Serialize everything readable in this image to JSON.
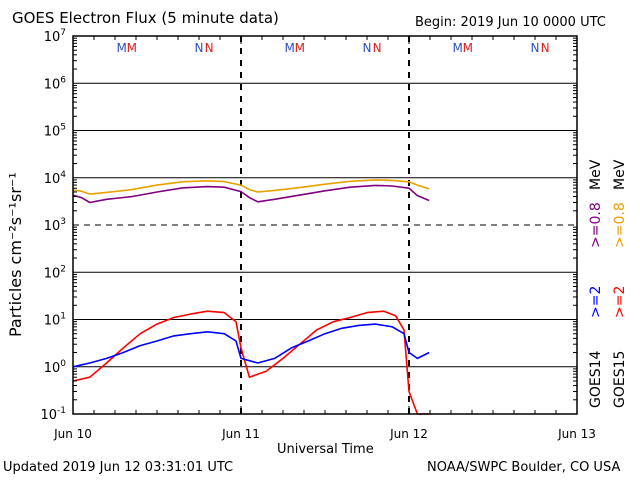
{
  "chart_data": {
    "type": "line",
    "title": "GOES Electron Flux (5 minute data)",
    "begin": "Begin: 2019 Jun 10 0000 UTC",
    "updated": "Updated 2019 Jun 12 03:31:01 UTC",
    "credit": "NOAA/SWPC Boulder, CO USA",
    "xlabel": "Universal Time",
    "ylabel": "Particles cm⁻²s⁻¹sr⁻¹",
    "x_ticks": [
      "Jun 10",
      "Jun 11",
      "Jun 12",
      "Jun 13"
    ],
    "x_range_days": [
      0,
      3
    ],
    "y_scale": "log",
    "y_range": [
      0.1,
      10000000
    ],
    "y_ticks": [
      {
        "base": "10",
        "exp": "-1"
      },
      {
        "base": "10",
        "exp": "0"
      },
      {
        "base": "10",
        "exp": "1"
      },
      {
        "base": "10",
        "exp": "2"
      },
      {
        "base": "10",
        "exp": "3"
      },
      {
        "base": "10",
        "exp": "4"
      },
      {
        "base": "10",
        "exp": "5"
      },
      {
        "base": "10",
        "exp": "6"
      },
      {
        "base": "10",
        "exp": "7"
      }
    ],
    "threshold": 1000,
    "markers": [
      "M",
      "M",
      "N",
      "N"
    ],
    "marker_colors": [
      "#3050c0",
      "#e02020"
    ],
    "satellite_labels": [
      "GOES14",
      "GOES15"
    ],
    "legend": [
      {
        "text": ">=2",
        "color": "#0000ff"
      },
      {
        "text": ">=0.8",
        "color": "#800080"
      },
      {
        "text": "MeV",
        "color": "#000000"
      },
      {
        "text": ">=2",
        "color": "#ff0000"
      },
      {
        "text": ">=0.8",
        "color": "#e8a000"
      },
      {
        "text": "MeV",
        "color": "#000000"
      }
    ],
    "series": [
      {
        "name": ">=0.8 MeV GOES15",
        "color": "#e8a000",
        "x": [
          0,
          0.05,
          0.1,
          0.2,
          0.35,
          0.5,
          0.65,
          0.8,
          0.9,
          1.0,
          1.05,
          1.1,
          1.2,
          1.35,
          1.5,
          1.65,
          1.8,
          1.9,
          2.0,
          2.05,
          2.12
        ],
        "y": [
          5500,
          5200,
          4500,
          4900,
          5600,
          7000,
          8200,
          8600,
          8300,
          7000,
          5600,
          5000,
          5400,
          6200,
          7300,
          8400,
          9000,
          8800,
          8200,
          7000,
          5800
        ]
      },
      {
        "name": ">=0.8 MeV GOES14",
        "color": "#800080",
        "x": [
          0,
          0.05,
          0.1,
          0.2,
          0.35,
          0.5,
          0.65,
          0.8,
          0.9,
          1.0,
          1.05,
          1.1,
          1.2,
          1.35,
          1.5,
          1.65,
          1.8,
          1.9,
          2.0,
          2.05,
          2.12
        ],
        "y": [
          4300,
          3800,
          3000,
          3500,
          4000,
          5000,
          6100,
          6500,
          6300,
          5100,
          3800,
          3100,
          3500,
          4300,
          5300,
          6300,
          6900,
          6700,
          6000,
          4200,
          3300
        ]
      },
      {
        "name": ">=2 MeV GOES15",
        "color": "#ff0000",
        "x": [
          0,
          0.1,
          0.2,
          0.3,
          0.4,
          0.5,
          0.6,
          0.7,
          0.8,
          0.9,
          0.97,
          1.0,
          1.05,
          1.15,
          1.25,
          1.35,
          1.45,
          1.55,
          1.65,
          1.75,
          1.85,
          1.92,
          1.97,
          2.0,
          2.05,
          2.12
        ],
        "y": [
          0.5,
          0.6,
          1.2,
          2.5,
          5.0,
          8.0,
          11,
          13,
          15,
          14,
          9,
          2.5,
          0.6,
          0.8,
          1.5,
          3,
          6,
          9,
          11,
          14,
          15,
          12,
          6,
          0.3,
          0.1,
          0.1
        ]
      },
      {
        "name": ">=2 MeV GOES14",
        "color": "#0000ff",
        "x": [
          0,
          0.1,
          0.2,
          0.3,
          0.4,
          0.5,
          0.6,
          0.7,
          0.8,
          0.9,
          0.97,
          1.0,
          1.1,
          1.2,
          1.3,
          1.4,
          1.5,
          1.6,
          1.7,
          1.8,
          1.9,
          1.97,
          2.0,
          2.05,
          2.12
        ],
        "y": [
          1.0,
          1.2,
          1.5,
          2.0,
          2.8,
          3.5,
          4.5,
          5.0,
          5.5,
          5.0,
          3.5,
          1.5,
          1.2,
          1.5,
          2.5,
          3.5,
          5.0,
          6.5,
          7.5,
          8.0,
          7.0,
          5.0,
          2.0,
          1.5,
          2.0
        ]
      }
    ]
  }
}
